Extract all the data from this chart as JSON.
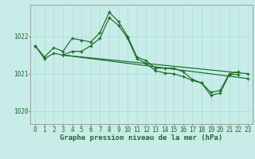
{
  "title": "Graphe pression niveau de la mer (hPa)",
  "bg_color": "#c8ece8",
  "grid_color": "#a8ddd8",
  "line_color": "#1a6b2a",
  "ylim": [
    1019.65,
    1022.85
  ],
  "yticks": [
    1020,
    1021,
    1022
  ],
  "xlim": [
    -0.5,
    23.5
  ],
  "xticks": [
    0,
    1,
    2,
    3,
    4,
    5,
    6,
    7,
    8,
    9,
    10,
    11,
    12,
    13,
    14,
    15,
    16,
    17,
    18,
    19,
    20,
    21,
    22,
    23
  ],
  "lines_data": {
    "line1": {
      "x": [
        0,
        1,
        2,
        3,
        4,
        5,
        6,
        7,
        8,
        9,
        10,
        11,
        12,
        13,
        14,
        15,
        16,
        17,
        18,
        19,
        20,
        21,
        22
      ],
      "y": [
        1021.75,
        1021.45,
        1021.7,
        1021.6,
        1021.95,
        1021.9,
        1021.85,
        1022.1,
        1022.65,
        1022.4,
        1022.0,
        1021.45,
        1021.35,
        1021.15,
        1021.15,
        1021.15,
        1021.05,
        1020.85,
        1020.75,
        1020.5,
        1020.55,
        1021.0,
        1021.05
      ]
    },
    "line2": {
      "x": [
        0,
        1,
        2,
        3,
        4,
        5,
        6,
        7,
        8,
        9,
        10,
        11,
        12,
        13,
        14,
        15,
        16,
        17,
        18,
        19,
        20,
        21,
        22
      ],
      "y": [
        1021.75,
        1021.4,
        1021.55,
        1021.5,
        1021.6,
        1021.6,
        1021.75,
        1021.95,
        1022.5,
        1022.3,
        1021.95,
        1021.4,
        1021.28,
        1021.08,
        1021.02,
        1021.0,
        1020.92,
        1020.82,
        1020.75,
        1020.42,
        1020.48,
        1020.98,
        1020.98
      ]
    },
    "line3": {
      "x": [
        3,
        23
      ],
      "y": [
        1021.5,
        1021.0
      ]
    },
    "line4": {
      "x": [
        3,
        23
      ],
      "y": [
        1021.5,
        1020.87
      ]
    }
  },
  "tick_fontsize": 5.5,
  "xlabel_fontsize": 6.5
}
